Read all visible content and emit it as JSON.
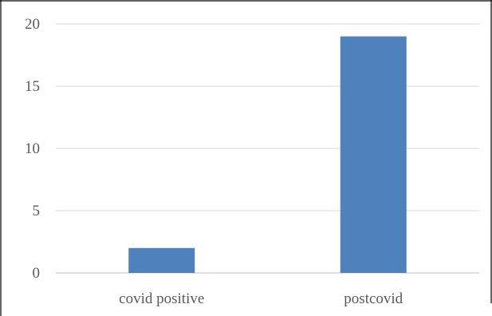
{
  "chart_data": {
    "type": "bar",
    "categories": [
      "covid positive",
      "postcovid"
    ],
    "values": [
      2,
      19
    ],
    "title": "",
    "xlabel": "",
    "ylabel": "",
    "ylim": [
      0,
      20
    ],
    "yticks": [
      0,
      5,
      10,
      15,
      20
    ],
    "grid": true,
    "legend": "none"
  },
  "colors": {
    "bar": "#4f81bd",
    "grid": "#d9d9d9",
    "axis": "#bfbfbf",
    "border": "#000000",
    "text": "#595959"
  }
}
